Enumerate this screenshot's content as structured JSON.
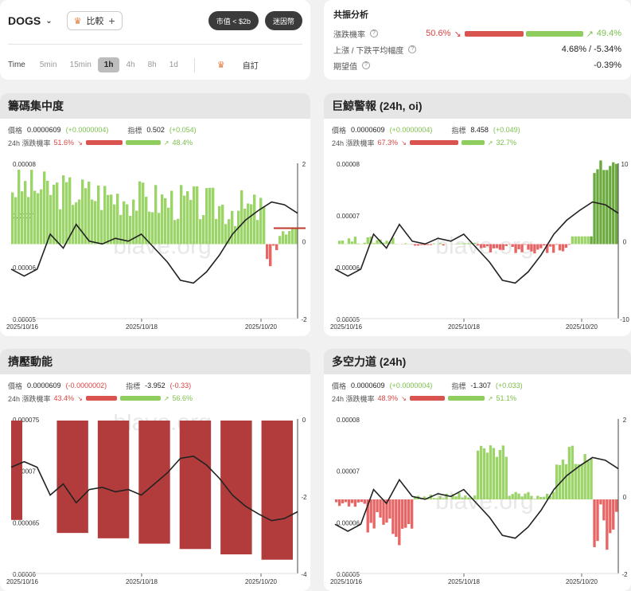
{
  "header": {
    "symbol": "DOGS",
    "compare_label": "比較",
    "filter_pill": "市值 < $2b",
    "meme_pill": "迷因幣",
    "timeframe_label": "Time",
    "timeframes": [
      "5min",
      "15min",
      "1h",
      "4h",
      "8h",
      "1d"
    ],
    "active_timeframe": "1h",
    "custom_label": "自訂"
  },
  "resonance": {
    "title": "共振分析",
    "rise_prob_label": "漲跌機率",
    "down_pct": "50.6%",
    "up_pct": "49.4%",
    "range_label": "上漲 / 下跌平均幅度",
    "range_value": "4.68% / -5.34%",
    "expect_label": "期望值",
    "expect_value": "-0.39%"
  },
  "panels": [
    {
      "title": "籌碼集中度",
      "price_label": "價格",
      "price": "0.0000609",
      "price_change": "(+0.0000004)",
      "index_label": "指標",
      "index": "0.502",
      "index_change": "(+0.054)",
      "prob_label": "24h 漲跌機率",
      "down": "51.6%",
      "up": "48.4%",
      "down_frac": 0.516
    },
    {
      "title": "巨鯨警報 (24h, oi)",
      "price_label": "價格",
      "price": "0.0000609",
      "price_change": "(+0.0000004)",
      "index_label": "指標",
      "index": "8.458",
      "index_change": "(+0.049)",
      "prob_label": "24h 漲跌機率",
      "down": "67.3%",
      "up": "32.7%",
      "down_frac": 0.673
    },
    {
      "title": "擠壓動能",
      "price_label": "價格",
      "price": "0.0000609",
      "price_change": "(-0.0000002)",
      "index_label": "指標",
      "index": "-3.952",
      "index_change": "(-0.33)",
      "prob_label": "24h 漲跌機率",
      "down": "43.4%",
      "up": "56.6%",
      "down_frac": 0.434
    },
    {
      "title": "多空力道 (24h)",
      "price_label": "價格",
      "price": "0.0000609",
      "price_change": "(+0.0000004)",
      "index_label": "指標",
      "index": "-1.307",
      "index_change": "(+0.033)",
      "prob_label": "24h 漲跌機率",
      "down": "48.9%",
      "up": "51.1%",
      "down_frac": 0.489
    }
  ],
  "chart_data": [
    {
      "type": "bar",
      "title": "籌碼集中度",
      "x_ticks": [
        "2025/10/16",
        "2025/10/18",
        "2025/10/20"
      ],
      "y_left_ticks": [
        "0.00008",
        "0.00007",
        "0.00006",
        "0.00005"
      ],
      "y_right_ticks": [
        "2",
        "0",
        "-2"
      ],
      "watermark": "blave.org"
    },
    {
      "type": "bar",
      "title": "巨鯨警報 (24h, oi)",
      "x_ticks": [
        "2025/10/16",
        "2025/10/18",
        "2025/10/20"
      ],
      "y_left_ticks": [
        "0.00008",
        "0.00007",
        "0.00006",
        "0.00005"
      ],
      "y_right_ticks": [
        "10",
        "0",
        "-10"
      ],
      "watermark": "blave.org"
    },
    {
      "type": "bar",
      "title": "擠壓動能",
      "x_ticks": [
        "2025/10/16",
        "2025/10/18",
        "2025/10/20"
      ],
      "y_left_ticks": [
        "0.000075",
        "0.00007",
        "0.000065",
        "0.00006"
      ],
      "y_right_ticks": [
        "0",
        "-2",
        "-4"
      ],
      "watermark": "blave.org"
    },
    {
      "type": "bar",
      "title": "多空力道 (24h)",
      "x_ticks": [
        "2025/10/16",
        "2025/10/18",
        "2025/10/20"
      ],
      "y_left_ticks": [
        "0.00008",
        "0.00007",
        "0.00006",
        "0.00005"
      ],
      "y_right_ticks": [
        "2",
        "0",
        "-2"
      ],
      "watermark": "blave.org"
    }
  ]
}
